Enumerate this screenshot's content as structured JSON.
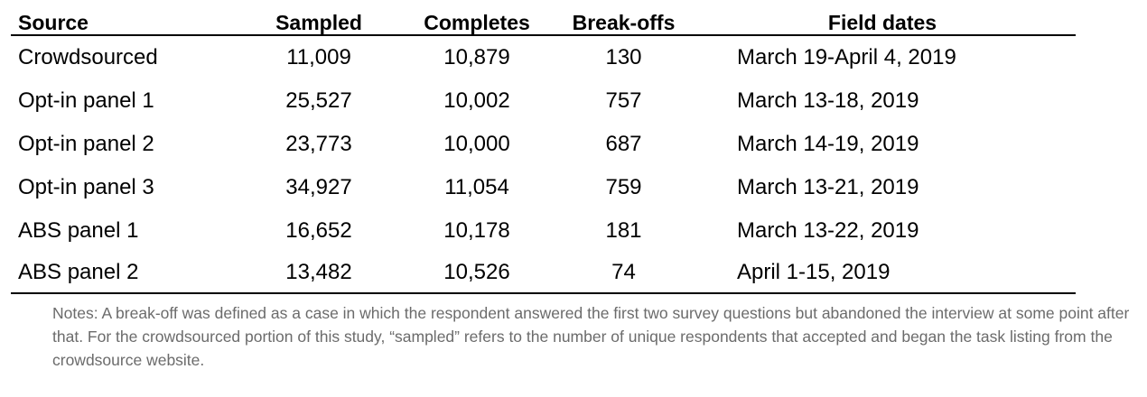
{
  "table": {
    "headers": {
      "source": "Source",
      "sampled": "Sampled",
      "completes": "Completes",
      "breakoffs": "Break-offs",
      "field_dates": "Field dates"
    },
    "rows": [
      {
        "source": "Crowdsourced",
        "sampled": "11,009",
        "completes": "10,879",
        "breakoffs": "130",
        "field_dates": "March 19-April 4, 2019"
      },
      {
        "source": "Opt-in panel 1",
        "sampled": "25,527",
        "completes": "10,002",
        "breakoffs": "757",
        "field_dates": "March 13-18, 2019"
      },
      {
        "source": "Opt-in panel 2",
        "sampled": "23,773",
        "completes": "10,000",
        "breakoffs": "687",
        "field_dates": "March 14-19, 2019"
      },
      {
        "source": "Opt-in panel 3",
        "sampled": "34,927",
        "completes": "11,054",
        "breakoffs": "759",
        "field_dates": "March 13-21, 2019"
      },
      {
        "source": "ABS panel 1",
        "sampled": "16,652",
        "completes": "10,178",
        "breakoffs": "181",
        "field_dates": "March 13-22, 2019"
      },
      {
        "source": "ABS panel 2",
        "sampled": "13,482",
        "completes": "10,526",
        "breakoffs": "74",
        "field_dates": "April 1-15, 2019"
      }
    ]
  },
  "notes": "Notes:  A break-off was defined as a case in which the respondent answered the first two survey questions but abandoned the interview at some point after that. For the crowdsourced portion of this study, “sampled” refers to the number of unique respondents that accepted and began the task listing from the crowdsource website."
}
